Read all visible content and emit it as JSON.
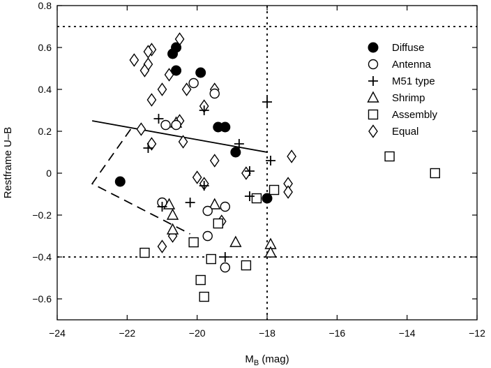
{
  "chart_data": {
    "type": "scatter",
    "title": "",
    "xlabel": {
      "main": "M",
      "sub": "B",
      "unit": " (mag)"
    },
    "ylabel": "Restframe U–B",
    "xlim": [
      -24,
      -12
    ],
    "ylim": [
      -0.7,
      0.8
    ],
    "xticks": [
      -24,
      -22,
      -20,
      -18,
      -16,
      -14,
      -12
    ],
    "xtick_labels": [
      "−24",
      "−22",
      "−20",
      "−18",
      "−16",
      "−14",
      "−12"
    ],
    "yticks": [
      -0.6,
      -0.4,
      -0.2,
      0,
      0.2,
      0.4,
      0.6,
      0.8
    ],
    "ytick_labels": [
      "−0.6",
      "−0.4",
      "−0.2",
      "0",
      "0.2",
      "0.4",
      "0.6",
      "0.8"
    ],
    "grid": false,
    "legend_position": "top-right",
    "reference_lines": {
      "horizontal_dotted": [
        0.7,
        -0.4
      ],
      "vertical_dotted": [
        -18
      ]
    },
    "fit_line": [
      [
        -23,
        0.25
      ],
      [
        -18,
        0.1
      ]
    ],
    "dashed_region": [
      [
        -21.9,
        0.21
      ],
      [
        -23,
        -0.05
      ],
      [
        -20.2,
        -0.29
      ]
    ],
    "series": [
      {
        "name": "Diffuse",
        "marker": "filled-circle",
        "points": [
          [
            -20.6,
            0.6
          ],
          [
            -20.7,
            0.57
          ],
          [
            -20.6,
            0.49
          ],
          [
            -19.9,
            0.48
          ],
          [
            -19.4,
            0.22
          ],
          [
            -19.2,
            0.22
          ],
          [
            -18.9,
            0.1
          ],
          [
            -22.2,
            -0.04
          ],
          [
            -18.0,
            -0.12
          ]
        ]
      },
      {
        "name": "Antenna",
        "marker": "open-circle",
        "points": [
          [
            -20.1,
            0.43
          ],
          [
            -19.5,
            0.38
          ],
          [
            -20.6,
            0.23
          ],
          [
            -20.9,
            0.23
          ],
          [
            -21.0,
            -0.14
          ],
          [
            -19.2,
            -0.16
          ],
          [
            -19.7,
            -0.18
          ],
          [
            -19.7,
            -0.3
          ],
          [
            -19.2,
            -0.45
          ]
        ]
      },
      {
        "name": "M51 type",
        "marker": "plus",
        "points": [
          [
            -21.1,
            0.26
          ],
          [
            -19.8,
            0.3
          ],
          [
            -18.0,
            0.34
          ],
          [
            -21.4,
            0.12
          ],
          [
            -18.8,
            0.14
          ],
          [
            -18.5,
            0.01
          ],
          [
            -17.9,
            0.06
          ],
          [
            -19.8,
            -0.06
          ],
          [
            -20.2,
            -0.14
          ],
          [
            -18.5,
            -0.11
          ],
          [
            -21.0,
            -0.16
          ],
          [
            -19.2,
            -0.4
          ]
        ]
      },
      {
        "name": "Shrimp",
        "marker": "triangle",
        "points": [
          [
            -20.6,
            0.24
          ],
          [
            -20.8,
            -0.15
          ],
          [
            -20.7,
            -0.2
          ],
          [
            -20.7,
            -0.27
          ],
          [
            -19.5,
            -0.15
          ],
          [
            -18.9,
            -0.33
          ],
          [
            -17.9,
            -0.34
          ],
          [
            -17.9,
            -0.38
          ]
        ]
      },
      {
        "name": "Assembly",
        "marker": "open-square",
        "points": [
          [
            -14.5,
            0.08
          ],
          [
            -13.2,
            0.0
          ],
          [
            -17.8,
            -0.08
          ],
          [
            -18.3,
            -0.12
          ],
          [
            -19.4,
            -0.24
          ],
          [
            -20.1,
            -0.33
          ],
          [
            -21.5,
            -0.38
          ],
          [
            -19.6,
            -0.41
          ],
          [
            -18.6,
            -0.44
          ],
          [
            -19.9,
            -0.51
          ],
          [
            -19.8,
            -0.59
          ]
        ]
      },
      {
        "name": "Equal",
        "marker": "open-diamond",
        "points": [
          [
            -20.5,
            0.64
          ],
          [
            -21.3,
            0.59
          ],
          [
            -21.4,
            0.58
          ],
          [
            -21.8,
            0.54
          ],
          [
            -21.4,
            0.52
          ],
          [
            -21.5,
            0.49
          ],
          [
            -20.8,
            0.47
          ],
          [
            -20.3,
            0.4
          ],
          [
            -19.5,
            0.4
          ],
          [
            -21.0,
            0.4
          ],
          [
            -21.3,
            0.35
          ],
          [
            -19.8,
            0.32
          ],
          [
            -20.5,
            0.25
          ],
          [
            -21.6,
            0.21
          ],
          [
            -21.3,
            0.14
          ],
          [
            -20.4,
            0.15
          ],
          [
            -19.5,
            0.06
          ],
          [
            -18.6,
            0.0
          ],
          [
            -20.0,
            -0.02
          ],
          [
            -19.8,
            -0.05
          ],
          [
            -17.3,
            0.08
          ],
          [
            -17.4,
            -0.05
          ],
          [
            -17.4,
            -0.09
          ],
          [
            -19.3,
            -0.23
          ],
          [
            -21.0,
            -0.35
          ],
          [
            -20.7,
            -0.3
          ]
        ]
      }
    ]
  }
}
